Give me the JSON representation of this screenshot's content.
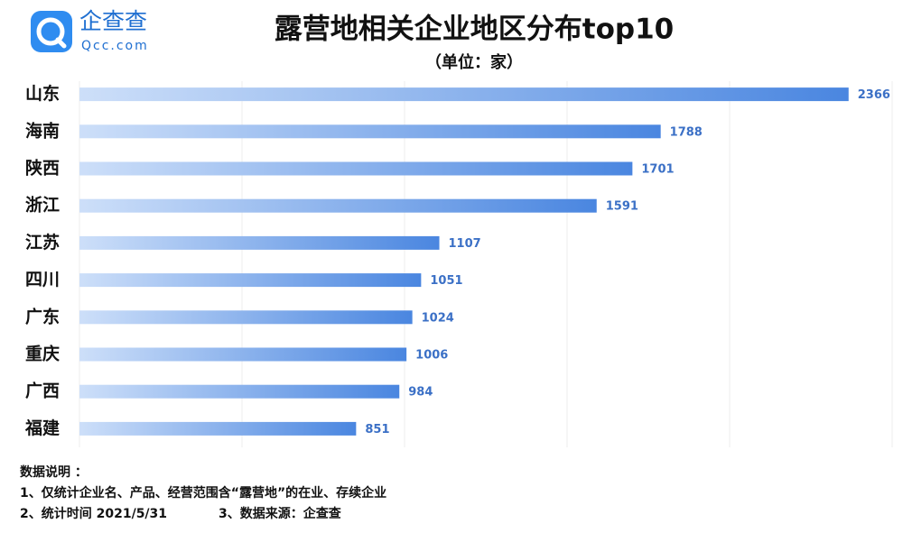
{
  "logo": {
    "name": "企查查",
    "url": "Qcc.com"
  },
  "chart_data": {
    "type": "bar",
    "orientation": "horizontal",
    "title": "露营地相关企业地区分布top10",
    "subtitle": "（单位：家）",
    "categories": [
      "山东",
      "海南",
      "陕西",
      "浙江",
      "江苏",
      "四川",
      "广东",
      "重庆",
      "广西",
      "福建"
    ],
    "values": [
      2366,
      1788,
      1701,
      1591,
      1107,
      1051,
      1024,
      1006,
      984,
      851
    ],
    "colors": [
      "#cddff9",
      "#4a86e0"
    ],
    "label_color": "#3b70c6",
    "xlim": [
      0,
      2500
    ],
    "xticks": [
      0,
      500,
      1000,
      1500,
      2000,
      2500
    ],
    "grid": true
  },
  "notes": {
    "heading": "数据说明 ：",
    "lines": [
      "1、仅统计企业名、产品、经营范围含“露营地”的在业、存续企业",
      "2、统计时间 2021/5/31",
      "3、数据来源：企查查"
    ]
  }
}
